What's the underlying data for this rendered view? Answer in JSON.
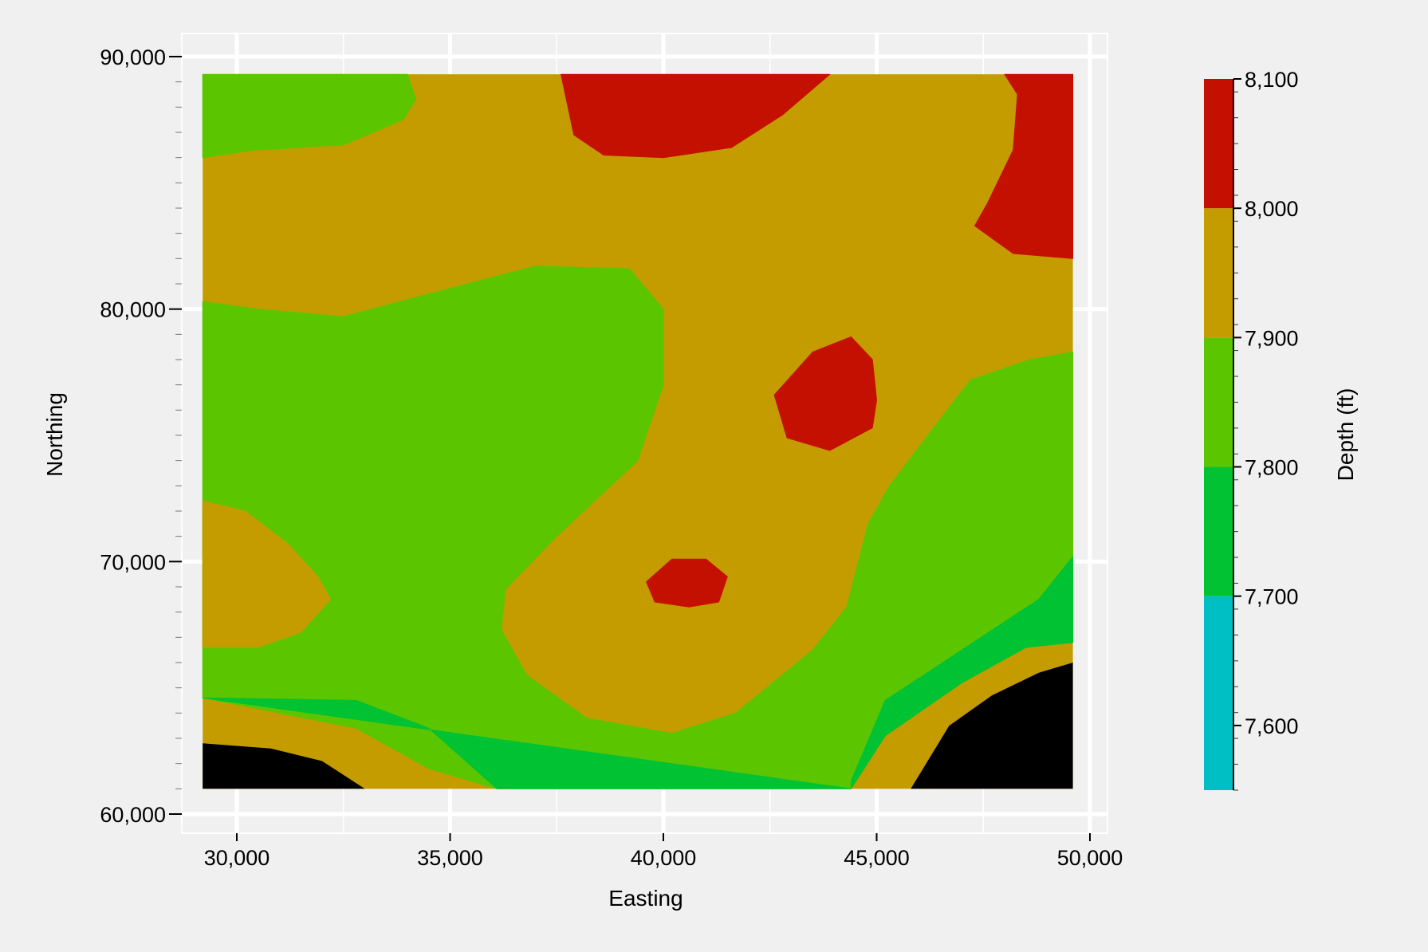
{
  "chart_data": {
    "type": "heatmap",
    "subtype": "filled-contour",
    "title": "",
    "xlabel": "Easting",
    "ylabel": "Northing",
    "xlim": [
      28700,
      50400
    ],
    "ylim": [
      59000,
      91000
    ],
    "x_ticks": [
      30000,
      35000,
      40000,
      45000,
      50000
    ],
    "y_ticks": [
      60000,
      70000,
      80000,
      90000
    ],
    "x_tick_labels": [
      "30,000",
      "35,000",
      "40,000",
      "45,000",
      "50,000"
    ],
    "y_tick_labels": [
      "60,000",
      "70,000",
      "80,000",
      "90,000"
    ],
    "grid": true,
    "data_extent": {
      "x": [
        29200,
        49600
      ],
      "y": [
        61000,
        89300
      ]
    },
    "colorbar": {
      "label": "Depth (ft)",
      "range": [
        7550,
        8100
      ],
      "tick_values": [
        8100,
        8000,
        7900,
        7800,
        7700,
        7600
      ],
      "tick_labels": [
        "8,100",
        "8,000",
        "7,900",
        "7,800",
        "7,700",
        "7,600"
      ],
      "levels": [
        {
          "from": 7550,
          "to": 7700,
          "color": "#00bfc4"
        },
        {
          "from": 7700,
          "to": 7800,
          "color": "#00c232"
        },
        {
          "from": 7800,
          "to": 7900,
          "color": "#5bc500"
        },
        {
          "from": 7900,
          "to": 8000,
          "color": "#c49c00"
        },
        {
          "from": 8000,
          "to": 8100,
          "color": "#c41000"
        }
      ]
    },
    "regions": [
      {
        "level": "7800-7900",
        "points": [
          [
            29200,
            86000
          ],
          [
            30400,
            86300
          ],
          [
            32500,
            86500
          ],
          [
            33900,
            87500
          ],
          [
            34200,
            88300
          ],
          [
            34000,
            89300
          ],
          [
            29200,
            89300
          ]
        ]
      },
      {
        "level": "7800-7900",
        "points": [
          [
            29200,
            80300
          ],
          [
            30500,
            80000
          ],
          [
            32500,
            79700
          ],
          [
            34500,
            80600
          ],
          [
            37000,
            81700
          ],
          [
            39200,
            81600
          ],
          [
            40000,
            80000
          ],
          [
            40000,
            77000
          ],
          [
            39400,
            74000
          ],
          [
            37500,
            71000
          ],
          [
            36300,
            68900
          ],
          [
            36200,
            67300
          ],
          [
            36800,
            65500
          ],
          [
            38200,
            63800
          ],
          [
            40200,
            63200
          ],
          [
            41700,
            64000
          ],
          [
            43500,
            66500
          ],
          [
            44300,
            68200
          ],
          [
            44800,
            71500
          ],
          [
            45300,
            73000
          ],
          [
            46200,
            75000
          ],
          [
            47200,
            77200
          ],
          [
            48600,
            78000
          ],
          [
            49600,
            78300
          ],
          [
            49600,
            70200
          ],
          [
            48800,
            68500
          ],
          [
            47000,
            66500
          ],
          [
            45200,
            64500
          ],
          [
            44400,
            61000
          ],
          [
            36100,
            61000
          ],
          [
            34500,
            61800
          ],
          [
            32800,
            63400
          ],
          [
            29200,
            64600
          ]
        ]
      },
      {
        "level": "7900-8000",
        "points": [
          [
            29200,
            72400
          ],
          [
            30200,
            72000
          ],
          [
            31200,
            70700
          ],
          [
            31900,
            69400
          ],
          [
            32200,
            68500
          ],
          [
            31500,
            67200
          ],
          [
            30500,
            66600
          ],
          [
            29200,
            66600
          ]
        ]
      },
      {
        "level": "7700-7800",
        "points": [
          [
            29200,
            64600
          ],
          [
            32800,
            64500
          ],
          [
            34500,
            63400
          ],
          [
            36100,
            61000
          ],
          [
            44400,
            61000
          ],
          [
            45200,
            63100
          ],
          [
            47000,
            65200
          ],
          [
            48500,
            66600
          ],
          [
            49600,
            66800
          ],
          [
            49600,
            70200
          ],
          [
            48800,
            68500
          ],
          [
            47000,
            66500
          ],
          [
            45200,
            64500
          ],
          [
            44400,
            61300
          ],
          [
            44400,
            61000
          ]
        ]
      },
      {
        "level": "7600-7700",
        "points": [
          [
            29200,
            62800
          ],
          [
            30800,
            62600
          ],
          [
            32000,
            62100
          ],
          [
            33000,
            61000
          ],
          [
            29200,
            61000
          ]
        ]
      },
      {
        "level": "7600-7700",
        "points": [
          [
            45800,
            61000
          ],
          [
            46700,
            63500
          ],
          [
            47700,
            64700
          ],
          [
            48800,
            65600
          ],
          [
            49600,
            66000
          ],
          [
            49600,
            61000
          ]
        ]
      },
      {
        "level": "8000-8100",
        "points": [
          [
            37600,
            89300
          ],
          [
            37900,
            86900
          ],
          [
            38600,
            86100
          ],
          [
            40000,
            86000
          ],
          [
            41600,
            86400
          ],
          [
            42800,
            87700
          ],
          [
            43900,
            89300
          ]
        ]
      },
      {
        "level": "8000-8100",
        "points": [
          [
            48000,
            89300
          ],
          [
            48300,
            88500
          ],
          [
            48200,
            86300
          ],
          [
            47600,
            84200
          ],
          [
            47300,
            83300
          ],
          [
            48200,
            82200
          ],
          [
            49600,
            82000
          ],
          [
            49600,
            89300
          ]
        ]
      },
      {
        "level": "8000-8100",
        "points": [
          [
            42600,
            76600
          ],
          [
            43500,
            78300
          ],
          [
            44400,
            78900
          ],
          [
            44900,
            78000
          ],
          [
            45000,
            76400
          ],
          [
            44900,
            75300
          ],
          [
            43900,
            74400
          ],
          [
            42900,
            74900
          ]
        ]
      },
      {
        "level": "8000-8100",
        "points": [
          [
            39600,
            69200
          ],
          [
            40200,
            70100
          ],
          [
            41000,
            70100
          ],
          [
            41500,
            69400
          ],
          [
            41300,
            68400
          ],
          [
            40600,
            68200
          ],
          [
            39800,
            68400
          ]
        ]
      }
    ]
  }
}
